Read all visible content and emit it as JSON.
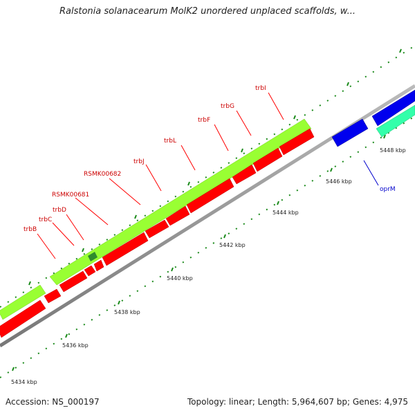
{
  "title": "Ralstonia solanacearum MolK2 unordered unplaced scaffolds, w...",
  "accession": "Accession: NS_000197",
  "topology": "Topology: linear; Length: 5,964,607 bp; Genes: 4,975",
  "scale_labels": [
    "5434 kbp",
    "5436 kbp",
    "5438 kbp",
    "5440 kbp",
    "5442 kbp",
    "5444 kbp",
    "5446 kbp",
    "5448 kbp"
  ],
  "gene_labels": [
    "trbB",
    "trbC",
    "trbD",
    "RSMK00681",
    "RSMK00682",
    "trbJ",
    "trbL",
    "trbF",
    "trbG",
    "trbI"
  ],
  "blue_label": "oprM",
  "colors": {
    "red": "#ff0000",
    "light_green": "#99ff33",
    "blue": "#0000ee",
    "teal": "#33ffaa",
    "dark_green": "#007700",
    "gray": "#999999"
  }
}
